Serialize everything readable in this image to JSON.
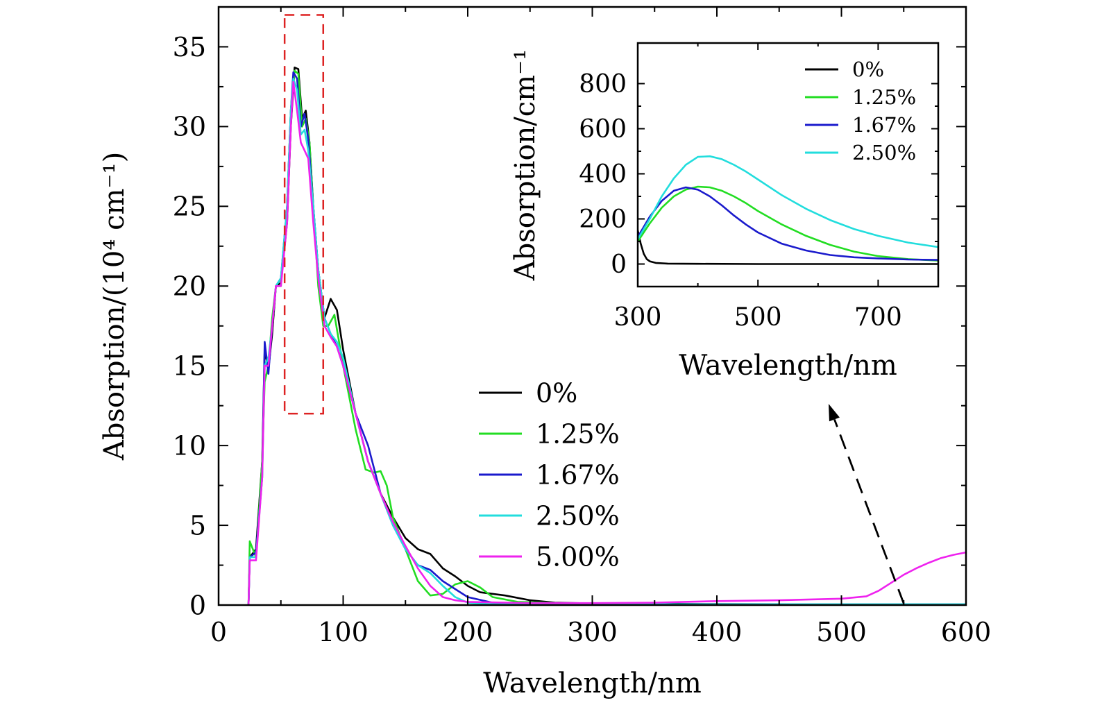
{
  "chart_data": [
    {
      "type": "line",
      "xlabel": "Wavelength/nm",
      "ylabel": "Absorption/(10⁴ cm⁻¹)",
      "xlim": [
        0,
        600
      ],
      "ylim": [
        0,
        37.5
      ],
      "xticks": [
        0,
        100,
        200,
        300,
        400,
        500,
        600
      ],
      "yticks": [
        0,
        5,
        10,
        15,
        20,
        25,
        30,
        35
      ],
      "xtick_labels": [
        "0",
        "100",
        "200",
        "300",
        "400",
        "500",
        "600"
      ],
      "ytick_labels": [
        "0",
        "5",
        "10",
        "15",
        "20",
        "25",
        "30",
        "35"
      ],
      "grid": false,
      "legend_position": "center-right",
      "annotations": [
        "red dashed rectangle around the main peak (about 53–84 nm, 12–37)",
        "black dashed arrow from 550 nm near baseline pointing toward the inset"
      ],
      "series": [
        {
          "name": "0%",
          "color": "#000000",
          "points": [
            [
              24,
              0
            ],
            [
              25,
              3
            ],
            [
              30,
              3.5
            ],
            [
              35,
              9
            ],
            [
              37,
              16
            ],
            [
              40,
              14.8
            ],
            [
              43,
              17
            ],
            [
              46,
              20
            ],
            [
              50,
              20.2
            ],
            [
              55,
              24
            ],
            [
              58,
              30
            ],
            [
              61,
              33.7
            ],
            [
              64,
              33.6
            ],
            [
              67,
              30.5
            ],
            [
              70,
              31
            ],
            [
              73,
              29
            ],
            [
              76,
              25
            ],
            [
              80,
              21
            ],
            [
              85,
              18
            ],
            [
              90,
              19.2
            ],
            [
              95,
              18.5
            ],
            [
              100,
              16
            ],
            [
              110,
              12
            ],
            [
              120,
              9
            ],
            [
              130,
              7
            ],
            [
              140,
              5.5
            ],
            [
              150,
              4.2
            ],
            [
              160,
              3.5
            ],
            [
              170,
              3.2
            ],
            [
              180,
              2.3
            ],
            [
              190,
              1.8
            ],
            [
              200,
              1.2
            ],
            [
              210,
              0.8
            ],
            [
              230,
              0.6
            ],
            [
              250,
              0.3
            ],
            [
              270,
              0.15
            ],
            [
              300,
              0.1
            ],
            [
              350,
              0.08
            ],
            [
              400,
              0.06
            ],
            [
              500,
              0.05
            ],
            [
              600,
              0.05
            ]
          ]
        },
        {
          "name": "1.25%",
          "color": "#22dd22",
          "points": [
            [
              24,
              0
            ],
            [
              25,
              4
            ],
            [
              30,
              3
            ],
            [
              35,
              9
            ],
            [
              37,
              14
            ],
            [
              40,
              15
            ],
            [
              43,
              18
            ],
            [
              46,
              20
            ],
            [
              50,
              20
            ],
            [
              55,
              25
            ],
            [
              58,
              31
            ],
            [
              61,
              33.5
            ],
            [
              64,
              33.3
            ],
            [
              67,
              30
            ],
            [
              70,
              30.5
            ],
            [
              73,
              29
            ],
            [
              76,
              25
            ],
            [
              80,
              20
            ],
            [
              84,
              17.5
            ],
            [
              88,
              17.5
            ],
            [
              93,
              18.2
            ],
            [
              100,
              15
            ],
            [
              110,
              11
            ],
            [
              118,
              8.5
            ],
            [
              125,
              8.3
            ],
            [
              130,
              8.4
            ],
            [
              135,
              7.5
            ],
            [
              140,
              5.5
            ],
            [
              150,
              3.5
            ],
            [
              160,
              1.5
            ],
            [
              170,
              0.6
            ],
            [
              180,
              0.7
            ],
            [
              190,
              1.3
            ],
            [
              200,
              1.5
            ],
            [
              210,
              1.1
            ],
            [
              220,
              0.5
            ],
            [
              240,
              0.2
            ],
            [
              300,
              0.05
            ],
            [
              600,
              0.05
            ]
          ]
        },
        {
          "name": "1.67%",
          "color": "#1a1acc",
          "points": [
            [
              24,
              0
            ],
            [
              25,
              3
            ],
            [
              30,
              3.3
            ],
            [
              35,
              8
            ],
            [
              37,
              16.5
            ],
            [
              40,
              14.5
            ],
            [
              43,
              17.5
            ],
            [
              46,
              20
            ],
            [
              50,
              20.5
            ],
            [
              55,
              25
            ],
            [
              58,
              31
            ],
            [
              60,
              33.4
            ],
            [
              63,
              33
            ],
            [
              66,
              30
            ],
            [
              69,
              30.8
            ],
            [
              72,
              29.2
            ],
            [
              76,
              25
            ],
            [
              80,
              21
            ],
            [
              85,
              18
            ],
            [
              90,
              17
            ],
            [
              95,
              16.2
            ],
            [
              100,
              15
            ],
            [
              110,
              12
            ],
            [
              120,
              10
            ],
            [
              130,
              7
            ],
            [
              140,
              5
            ],
            [
              150,
              3.5
            ],
            [
              160,
              2.5
            ],
            [
              170,
              2.2
            ],
            [
              180,
              1.5
            ],
            [
              190,
              1
            ],
            [
              200,
              0.5
            ],
            [
              220,
              0.15
            ],
            [
              250,
              0.05
            ],
            [
              600,
              0.05
            ]
          ]
        },
        {
          "name": "2.50%",
          "color": "#22dddd",
          "points": [
            [
              24,
              0
            ],
            [
              25,
              3
            ],
            [
              30,
              3
            ],
            [
              35,
              8
            ],
            [
              37,
              15
            ],
            [
              40,
              15.5
            ],
            [
              43,
              17.5
            ],
            [
              46,
              20
            ],
            [
              50,
              20.5
            ],
            [
              55,
              25
            ],
            [
              58,
              31
            ],
            [
              60,
              33
            ],
            [
              63,
              32.3
            ],
            [
              66,
              29.5
            ],
            [
              69,
              29.8
            ],
            [
              72,
              28.5
            ],
            [
              76,
              25
            ],
            [
              80,
              21
            ],
            [
              85,
              18
            ],
            [
              90,
              17
            ],
            [
              95,
              16.5
            ],
            [
              100,
              15.5
            ],
            [
              110,
              12
            ],
            [
              120,
              9
            ],
            [
              130,
              7
            ],
            [
              140,
              5
            ],
            [
              150,
              3.5
            ],
            [
              160,
              2.5
            ],
            [
              170,
              2
            ],
            [
              180,
              1.2
            ],
            [
              190,
              0.5
            ],
            [
              200,
              0.15
            ],
            [
              220,
              0.05
            ],
            [
              600,
              0.05
            ]
          ]
        },
        {
          "name": "5.00%",
          "color": "#ee22ee",
          "points": [
            [
              24,
              0
            ],
            [
              25,
              2.8
            ],
            [
              30,
              2.8
            ],
            [
              35,
              8
            ],
            [
              37,
              15
            ],
            [
              40,
              15
            ],
            [
              43,
              17.5
            ],
            [
              46,
              20
            ],
            [
              50,
              20
            ],
            [
              55,
              24
            ],
            [
              58,
              30
            ],
            [
              60,
              32.8
            ],
            [
              63,
              31
            ],
            [
              66,
              29
            ],
            [
              69,
              28.5
            ],
            [
              72,
              28
            ],
            [
              76,
              24
            ],
            [
              80,
              20.5
            ],
            [
              85,
              17.5
            ],
            [
              90,
              16.8
            ],
            [
              95,
              16.2
            ],
            [
              100,
              15
            ],
            [
              110,
              12
            ],
            [
              120,
              9
            ],
            [
              130,
              7
            ],
            [
              140,
              5.2
            ],
            [
              150,
              3.7
            ],
            [
              160,
              2.3
            ],
            [
              170,
              1.2
            ],
            [
              180,
              0.5
            ],
            [
              190,
              0.3
            ],
            [
              200,
              0.2
            ],
            [
              250,
              0.12
            ],
            [
              300,
              0.12
            ],
            [
              350,
              0.15
            ],
            [
              400,
              0.25
            ],
            [
              450,
              0.3
            ],
            [
              500,
              0.4
            ],
            [
              520,
              0.55
            ],
            [
              530,
              0.9
            ],
            [
              540,
              1.4
            ],
            [
              550,
              1.9
            ],
            [
              560,
              2.3
            ],
            [
              570,
              2.65
            ],
            [
              580,
              2.95
            ],
            [
              590,
              3.15
            ],
            [
              600,
              3.3
            ]
          ]
        }
      ]
    },
    {
      "type": "line",
      "xlabel": "Wavelength/nm",
      "ylabel": "Absorption/cm⁻¹",
      "xlim": [
        300,
        800
      ],
      "ylim": [
        -100,
        980
      ],
      "xticks": [
        300,
        500,
        700
      ],
      "yticks": [
        0,
        200,
        400,
        600,
        800
      ],
      "xtick_labels": [
        "300",
        "500",
        "700"
      ],
      "ytick_labels": [
        "0",
        "200",
        "400",
        "600",
        "800"
      ],
      "grid": false,
      "legend_position": "top-right",
      "series": [
        {
          "name": "0%",
          "color": "#000000",
          "points": [
            [
              300,
              150
            ],
            [
              305,
              90
            ],
            [
              310,
              45
            ],
            [
              315,
              22
            ],
            [
              320,
              12
            ],
            [
              330,
              5
            ],
            [
              350,
              2
            ],
            [
              400,
              1
            ],
            [
              500,
              0
            ],
            [
              600,
              0
            ],
            [
              800,
              0
            ]
          ]
        },
        {
          "name": "1.25%",
          "color": "#22dd22",
          "points": [
            [
              300,
              100
            ],
            [
              320,
              180
            ],
            [
              340,
              250
            ],
            [
              360,
              300
            ],
            [
              380,
              330
            ],
            [
              400,
              343
            ],
            [
              420,
              340
            ],
            [
              440,
              325
            ],
            [
              460,
              300
            ],
            [
              480,
              270
            ],
            [
              500,
              235
            ],
            [
              540,
              175
            ],
            [
              580,
              125
            ],
            [
              620,
              85
            ],
            [
              660,
              55
            ],
            [
              700,
              35
            ],
            [
              750,
              22
            ],
            [
              800,
              15
            ]
          ]
        },
        {
          "name": "1.67%",
          "color": "#1a1acc",
          "points": [
            [
              300,
              120
            ],
            [
              320,
              210
            ],
            [
              340,
              280
            ],
            [
              360,
              325
            ],
            [
              380,
              340
            ],
            [
              400,
              330
            ],
            [
              420,
              300
            ],
            [
              440,
              260
            ],
            [
              460,
              215
            ],
            [
              480,
              175
            ],
            [
              500,
              140
            ],
            [
              540,
              90
            ],
            [
              580,
              60
            ],
            [
              620,
              40
            ],
            [
              660,
              30
            ],
            [
              700,
              25
            ],
            [
              750,
              20
            ],
            [
              800,
              18
            ]
          ]
        },
        {
          "name": "2.50%",
          "color": "#22dddd",
          "points": [
            [
              300,
              110
            ],
            [
              320,
              200
            ],
            [
              340,
              300
            ],
            [
              360,
              380
            ],
            [
              380,
              440
            ],
            [
              400,
              475
            ],
            [
              420,
              478
            ],
            [
              440,
              465
            ],
            [
              460,
              440
            ],
            [
              480,
              410
            ],
            [
              500,
              375
            ],
            [
              540,
              305
            ],
            [
              580,
              245
            ],
            [
              620,
              195
            ],
            [
              660,
              155
            ],
            [
              700,
              125
            ],
            [
              750,
              95
            ],
            [
              800,
              75
            ]
          ]
        }
      ]
    }
  ]
}
